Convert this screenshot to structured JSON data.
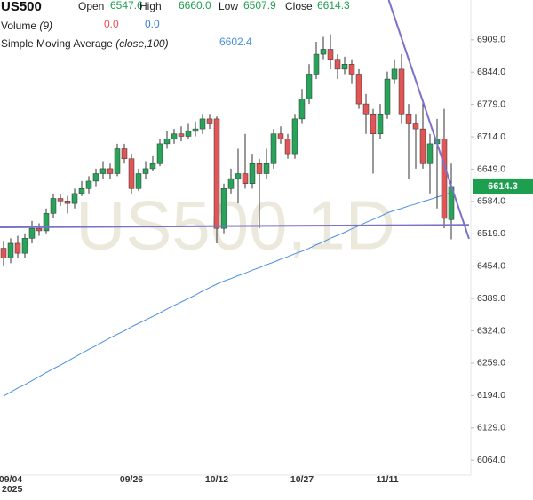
{
  "chart_data": {
    "type": "candlestick",
    "symbol": "US500",
    "ohlc_legend": [
      {
        "label": "Open",
        "value": "6547.6"
      },
      {
        "label": "High",
        "value": "6660.0"
      },
      {
        "label": "Low",
        "value": "6507.9"
      },
      {
        "label": "Close",
        "value": "6614.3"
      }
    ],
    "volume_legend": {
      "name": "Volume",
      "params": "(9)",
      "values": [
        "0.0",
        "0.0"
      ],
      "colors": [
        "#e05050",
        "#3b7dd8"
      ]
    },
    "watermark": "US500,1D",
    "year_label": "2025",
    "up_color": "#27a35a",
    "down_color": "#e05555",
    "categories": [
      null,
      "09/04",
      null,
      null,
      null,
      null,
      null,
      null,
      null,
      null,
      null,
      null,
      null,
      null,
      null,
      null,
      null,
      null,
      "09/26",
      null,
      null,
      null,
      null,
      null,
      null,
      null,
      null,
      null,
      null,
      null,
      "10/12",
      null,
      null,
      null,
      null,
      null,
      null,
      null,
      null,
      null,
      null,
      null,
      "10/27",
      null,
      null,
      null,
      null,
      null,
      null,
      null,
      null,
      null,
      null,
      null,
      "11/11",
      null,
      null,
      null,
      null,
      null,
      null,
      null,
      null,
      null
    ],
    "open": [
      6490,
      6470,
      6500,
      6480,
      6510,
      6530,
      6525,
      6560,
      6590,
      6585,
      6580,
      6600,
      6610,
      6625,
      6640,
      6650,
      6640,
      6690,
      6670,
      6610,
      6640,
      6650,
      6660,
      6700,
      6710,
      6720,
      6715,
      6725,
      6730,
      6750,
      6750,
      6530,
      6610,
      6630,
      6640,
      6620,
      6660,
      6640,
      6660,
      6720,
      6710,
      6680,
      6750,
      6790,
      6840,
      6880,
      6890,
      6870,
      6850,
      6860,
      6840,
      6780,
      6760,
      6720,
      6760,
      6830,
      6850,
      6760,
      6740,
      6730,
      6660,
      6700,
      6710,
      6547.6
    ],
    "high": [
      6505,
      6510,
      6515,
      6520,
      6545,
      6540,
      6570,
      6600,
      6600,
      6595,
      6610,
      6625,
      6635,
      6650,
      6665,
      6660,
      6700,
      6700,
      6680,
      6650,
      6665,
      6675,
      6710,
      6725,
      6730,
      6735,
      6740,
      6745,
      6760,
      6760,
      6755,
      6620,
      6650,
      6690,
      6720,
      6680,
      6670,
      6690,
      6730,
      6735,
      6720,
      6760,
      6810,
      6860,
      6905,
      6915,
      6920,
      6880,
      6875,
      6870,
      6850,
      6800,
      6770,
      6780,
      6845,
      6870,
      6880,
      6780,
      6760,
      6790,
      6720,
      6750,
      6770,
      6660
    ],
    "low": [
      6455,
      6460,
      6470,
      6470,
      6500,
      6515,
      6520,
      6550,
      6575,
      6560,
      6570,
      6595,
      6600,
      6615,
      6630,
      6630,
      6635,
      6660,
      6600,
      6605,
      6630,
      6645,
      6655,
      6690,
      6700,
      6705,
      6710,
      6715,
      6720,
      6730,
      6500,
      6520,
      6600,
      6580,
      6610,
      6610,
      6530,
      6630,
      6650,
      6700,
      6670,
      6670,
      6740,
      6780,
      6830,
      6870,
      6850,
      6830,
      6840,
      6820,
      6770,
      6720,
      6640,
      6710,
      6750,
      6820,
      6740,
      6630,
      6650,
      6650,
      6600,
      6570,
      6530,
      6507.9
    ],
    "close": [
      6470,
      6500,
      6480,
      6510,
      6530,
      6525,
      6560,
      6590,
      6585,
      6580,
      6600,
      6610,
      6625,
      6640,
      6650,
      6640,
      6690,
      6670,
      6610,
      6640,
      6650,
      6660,
      6700,
      6710,
      6720,
      6715,
      6725,
      6730,
      6750,
      6740,
      6530,
      6610,
      6630,
      6640,
      6620,
      6660,
      6640,
      6660,
      6720,
      6710,
      6680,
      6750,
      6790,
      6840,
      6880,
      6890,
      6870,
      6850,
      6860,
      6840,
      6780,
      6760,
      6720,
      6760,
      6830,
      6850,
      6760,
      6740,
      6730,
      6660,
      6700,
      6710,
      6550,
      6614.3
    ],
    "sma": {
      "name": "Simple Moving Average",
      "params": "(close,100)",
      "value_label": "6602.4",
      "color": "#4a8fe0",
      "values": [
        6193,
        6201,
        6209,
        6216,
        6224,
        6232,
        6240,
        6248,
        6255,
        6263,
        6271,
        6279,
        6287,
        6294,
        6302,
        6310,
        6317,
        6324,
        6332,
        6339,
        6346,
        6353,
        6360,
        6368,
        6375,
        6382,
        6389,
        6396,
        6404,
        6411,
        6418,
        6424,
        6429,
        6435,
        6440,
        6446,
        6451,
        6457,
        6462,
        6468,
        6473,
        6479,
        6484,
        6490,
        6497,
        6503,
        6510,
        6516,
        6522,
        6529,
        6535,
        6542,
        6548,
        6554,
        6561,
        6566,
        6570,
        6575,
        6579,
        6584,
        6588,
        6593,
        6597,
        6602.4
      ]
    },
    "trendlines": [
      {
        "color": "#7a72c8",
        "x": [
          54.2,
          65.5
        ],
        "y": [
          6989,
          6509
        ]
      },
      {
        "color": "#7a72c8",
        "x": [
          -0.5,
          65.5
        ],
        "y": [
          6532,
          6537
        ]
      }
    ],
    "ylim": [
      6034,
      6989
    ],
    "yticks": [
      {
        "value": 6064,
        "label": "6064.0"
      },
      {
        "value": 6129,
        "label": "6129.0"
      },
      {
        "value": 6194,
        "label": "6194.0"
      },
      {
        "value": 6259,
        "label": "6259.0"
      },
      {
        "value": 6324,
        "label": "6324.0"
      },
      {
        "value": 6389,
        "label": "6389.0"
      },
      {
        "value": 6454,
        "label": "6454.0"
      },
      {
        "value": 6519,
        "label": "6519.0"
      },
      {
        "value": 6584,
        "label": "6584.0"
      },
      {
        "value": 6649,
        "label": "6649.0"
      },
      {
        "value": 6714,
        "label": "6714.0"
      },
      {
        "value": 6779,
        "label": "6779.0"
      },
      {
        "value": 6844,
        "label": "6844.0"
      },
      {
        "value": 6909,
        "label": "6909.0"
      }
    ]
  }
}
